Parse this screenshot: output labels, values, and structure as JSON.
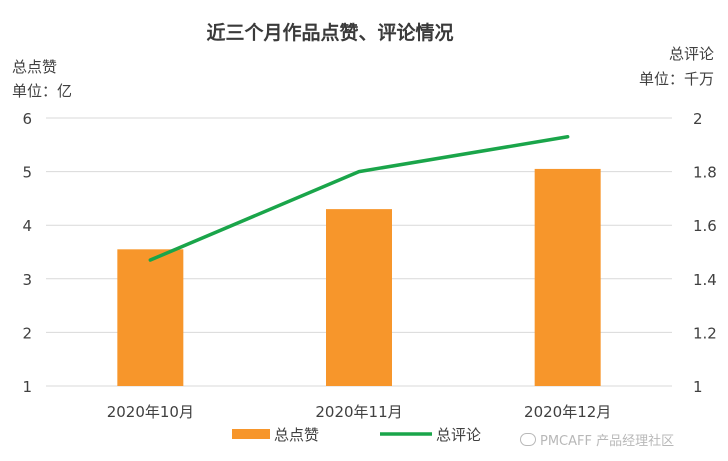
{
  "chart_data": {
    "type": "bar",
    "title": "近三个月作品点赞、评论情况",
    "categories": [
      "2020年10月",
      "2020年11月",
      "2020年12月"
    ],
    "series": [
      {
        "name": "总点赞",
        "kind": "bar",
        "axis": "left",
        "values": [
          3.55,
          4.3,
          5.05
        ],
        "color": "#f7962b"
      },
      {
        "name": "总评论",
        "kind": "line",
        "axis": "right",
        "values": [
          1.47,
          1.8,
          1.93
        ],
        "color": "#1aa54a"
      }
    ],
    "y_left": {
      "label_line1": "总点赞",
      "label_line2": "单位：亿",
      "range": [
        1,
        6
      ],
      "ticks": [
        1,
        2,
        3,
        4,
        5,
        6
      ]
    },
    "y_right": {
      "label_line1": "总评论",
      "label_line2": "单位：千万",
      "range": [
        1,
        2
      ],
      "ticks": [
        "1",
        "1.2",
        "1.4",
        "1.6",
        "1.8",
        "2"
      ]
    },
    "grid": true,
    "legend_position": "bottom"
  },
  "watermark_text": "PMCAFF 产品经理社区",
  "colors": {
    "grid": "#d9d9d9",
    "text": "#404040"
  }
}
